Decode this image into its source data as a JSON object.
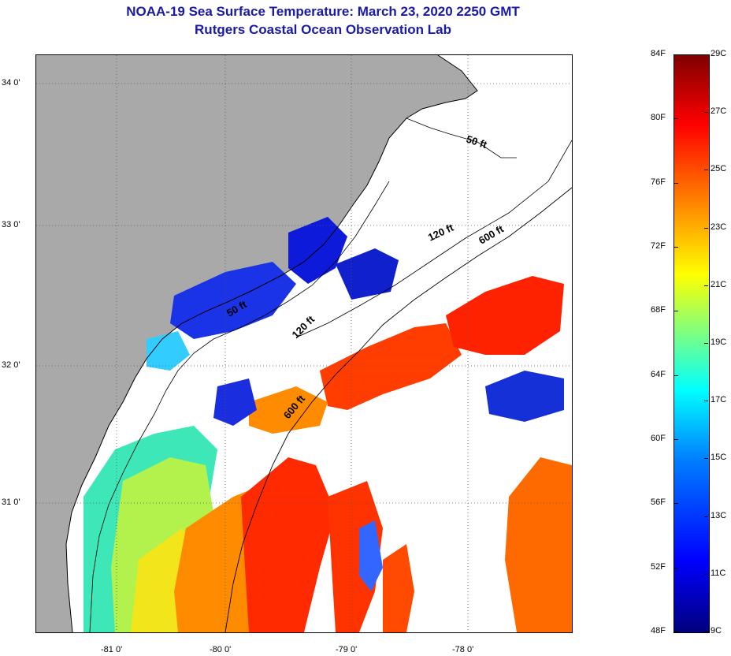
{
  "title": {
    "line1": "NOAA-19 Sea Surface Temperature:  March 23, 2020 2250 GMT",
    "line2": "Rutgers Coastal Ocean Observation Lab"
  },
  "map": {
    "lat_labels": [
      "34 0'",
      "33 0'",
      "32 0'",
      "31 0'"
    ],
    "lon_labels": [
      "-81 0'",
      "-80 0'",
      "-79 0'",
      "-78 0'"
    ],
    "contours": [
      {
        "label": "50 ft"
      },
      {
        "label": "120 ft"
      },
      {
        "label": "600 ft"
      },
      {
        "label": "50 ft"
      },
      {
        "label": "120 ft"
      },
      {
        "label": "600 ft"
      }
    ],
    "colors": {
      "land": "#a9a9a9",
      "cloud": "#ffffff",
      "coastline": "#000000"
    }
  },
  "colorbar": {
    "fahrenheit": [
      "84F",
      "80F",
      "76F",
      "72F",
      "68F",
      "64F",
      "60F",
      "56F",
      "52F",
      "48F"
    ],
    "celsius": [
      "29C",
      "27C",
      "25C",
      "23C",
      "21C",
      "19C",
      "17C",
      "15C",
      "13C",
      "11C",
      "9C"
    ],
    "range_f": [
      48,
      84
    ],
    "range_c": [
      9,
      29
    ],
    "colormap": "jet"
  }
}
